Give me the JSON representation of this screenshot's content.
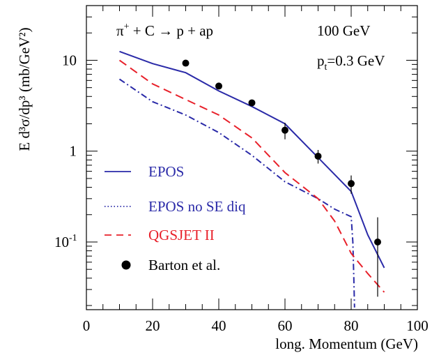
{
  "chart_data": {
    "type": "line",
    "ylog": true,
    "xlim": [
      0,
      100
    ],
    "ylim": [
      0.018,
      40
    ],
    "xlabel": "long. Momentum (GeV)",
    "ylabel": "E d³σ/dp³ (mb/GeV²)",
    "x_ticks": [
      "0",
      "20",
      "40",
      "60",
      "80",
      "100"
    ],
    "y_ticks": [
      {
        "value": 10,
        "label": "10"
      },
      {
        "value": 1,
        "label": "1"
      },
      {
        "value": 0.1,
        "label": "10",
        "exp": "-1"
      }
    ],
    "annotations": {
      "reaction": {
        "base": "π",
        "sup": "+",
        "rest": " + C → p + ap"
      },
      "energy": "100 GeV",
      "pt": {
        "base": "p",
        "sub": "t",
        "rest": "=0.3 GeV"
      }
    },
    "series": [
      {
        "name": "EPOS",
        "style": "solid",
        "color": "#2a2aa8",
        "points": [
          [
            10,
            12.5
          ],
          [
            20,
            9.2
          ],
          [
            30,
            7.3
          ],
          [
            40,
            4.6
          ],
          [
            50,
            3.1
          ],
          [
            60,
            2.0
          ],
          [
            70,
            0.85
          ],
          [
            80,
            0.36
          ],
          [
            85,
            0.12
          ],
          [
            90,
            0.052
          ]
        ]
      },
      {
        "name": "EPOS no SE diq",
        "style": "dashdot",
        "color": "#2a2aa8",
        "points": [
          [
            10,
            6.2
          ],
          [
            20,
            3.5
          ],
          [
            30,
            2.5
          ],
          [
            40,
            1.6
          ],
          [
            50,
            0.9
          ],
          [
            60,
            0.46
          ],
          [
            70,
            0.3
          ],
          [
            75,
            0.23
          ],
          [
            80,
            0.19
          ],
          [
            80.5,
            0.1
          ],
          [
            80.8,
            0.04
          ],
          [
            81,
            0.019
          ]
        ]
      },
      {
        "name": "QGSJET II",
        "style": "dashed",
        "color": "#e8202a",
        "points": [
          [
            10,
            10.0
          ],
          [
            20,
            5.5
          ],
          [
            30,
            3.7
          ],
          [
            40,
            2.5
          ],
          [
            50,
            1.4
          ],
          [
            60,
            0.58
          ],
          [
            70,
            0.3
          ],
          [
            75,
            0.17
          ],
          [
            80,
            0.075
          ],
          [
            85,
            0.045
          ],
          [
            90,
            0.028
          ]
        ]
      },
      {
        "name": "Barton et al.",
        "style": "markers",
        "color": "#000000",
        "points": [
          [
            30,
            9.3,
            0,
            0
          ],
          [
            40,
            5.2,
            0,
            0
          ],
          [
            50,
            3.4,
            0,
            0
          ],
          [
            60,
            1.7,
            0.35,
            0.35
          ],
          [
            70,
            0.88,
            0.15,
            0.15
          ],
          [
            80,
            0.44,
            0.1,
            0.1
          ],
          [
            88,
            0.1,
            0.075,
            0.087
          ]
        ]
      }
    ]
  }
}
